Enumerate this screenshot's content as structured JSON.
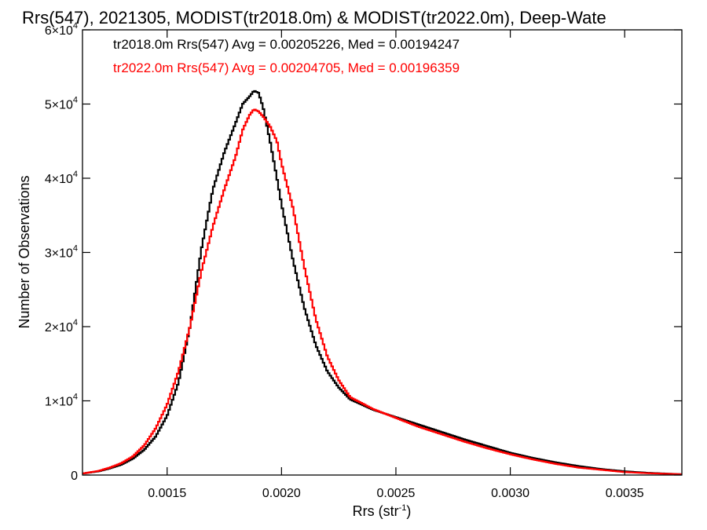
{
  "chart_data": {
    "type": "line",
    "title": "Rrs(547), 2021305, MODIST(tr2018.0m) & MODIST(tr2022.0m), Deep-Wate",
    "xlabel": {
      "base": "Rrs (str",
      "sup": "-1",
      "tail": ")"
    },
    "ylabel": "Number of Observations",
    "xlim": [
      0.00113,
      0.00375
    ],
    "ylim": [
      0,
      60000
    ],
    "xticks": [
      {
        "value": 0.0015,
        "label": "0.0015"
      },
      {
        "value": 0.002,
        "label": "0.0020"
      },
      {
        "value": 0.0025,
        "label": "0.0025"
      },
      {
        "value": 0.003,
        "label": "0.0030"
      },
      {
        "value": 0.0035,
        "label": "0.0035"
      }
    ],
    "yticks": [
      {
        "value": 0,
        "mant": "0",
        "exp": ""
      },
      {
        "value": 10000,
        "mant": "1×10",
        "exp": "4"
      },
      {
        "value": 20000,
        "mant": "2×10",
        "exp": "4"
      },
      {
        "value": 30000,
        "mant": "3×10",
        "exp": "4"
      },
      {
        "value": 40000,
        "mant": "4×10",
        "exp": "4"
      },
      {
        "value": 50000,
        "mant": "5×10",
        "exp": "4"
      },
      {
        "value": 60000,
        "mant": "6×10",
        "exp": "4"
      }
    ],
    "legend_placement": "top-left",
    "legend": [
      {
        "text": "tr2018.0m Rrs(547) Avg = 0.00205226, Med = 0.00194247",
        "color": "#000000"
      },
      {
        "text": "tr2022.0m Rrs(547) Avg = 0.00204705, Med = 0.00196359",
        "color": "#ff0000"
      }
    ],
    "series": [
      {
        "color": "#000000",
        "style": "step",
        "x": [
          0.00113,
          0.0012,
          0.00125,
          0.0013,
          0.00135,
          0.0014,
          0.00145,
          0.0015,
          0.00155,
          0.0016,
          0.00165,
          0.0017,
          0.00175,
          0.0018,
          0.00183,
          0.00186,
          0.00188,
          0.0019,
          0.00192,
          0.00195,
          0.00198,
          0.002,
          0.00205,
          0.0021,
          0.00215,
          0.0022,
          0.00225,
          0.0023,
          0.0024,
          0.0025,
          0.0026,
          0.0027,
          0.0028,
          0.0029,
          0.003,
          0.0031,
          0.0032,
          0.0033,
          0.0034,
          0.0035,
          0.0036,
          0.00375
        ],
        "y": [
          200,
          500,
          900,
          1400,
          2200,
          3400,
          5200,
          8000,
          12500,
          20000,
          30500,
          38500,
          43500,
          47500,
          50000,
          51000,
          51800,
          51500,
          49500,
          45000,
          40000,
          36500,
          29000,
          22500,
          17500,
          14000,
          11800,
          10200,
          8800,
          7800,
          6800,
          5800,
          4800,
          3900,
          3000,
          2300,
          1700,
          1200,
          800,
          500,
          300,
          100
        ]
      },
      {
        "color": "#ff0000",
        "style": "step",
        "x": [
          0.00113,
          0.0012,
          0.00125,
          0.0013,
          0.00135,
          0.0014,
          0.00145,
          0.0015,
          0.00155,
          0.0016,
          0.00165,
          0.0017,
          0.00175,
          0.0018,
          0.00183,
          0.00186,
          0.00188,
          0.0019,
          0.00192,
          0.00195,
          0.00198,
          0.002,
          0.00205,
          0.0021,
          0.00215,
          0.0022,
          0.00225,
          0.0023,
          0.0024,
          0.0025,
          0.0026,
          0.0027,
          0.0028,
          0.0029,
          0.003,
          0.0031,
          0.0032,
          0.0033,
          0.0034,
          0.0035,
          0.0036,
          0.00375
        ],
        "y": [
          200,
          550,
          1000,
          1600,
          2500,
          4000,
          6300,
          9500,
          14000,
          20000,
          27500,
          33500,
          38500,
          43000,
          46500,
          48500,
          49300,
          49000,
          48300,
          47000,
          45000,
          42000,
          36000,
          28000,
          21000,
          16000,
          12800,
          10500,
          8900,
          7700,
          6500,
          5500,
          4500,
          3600,
          2800,
          2100,
          1500,
          1000,
          700,
          400,
          250,
          100
        ]
      }
    ]
  }
}
